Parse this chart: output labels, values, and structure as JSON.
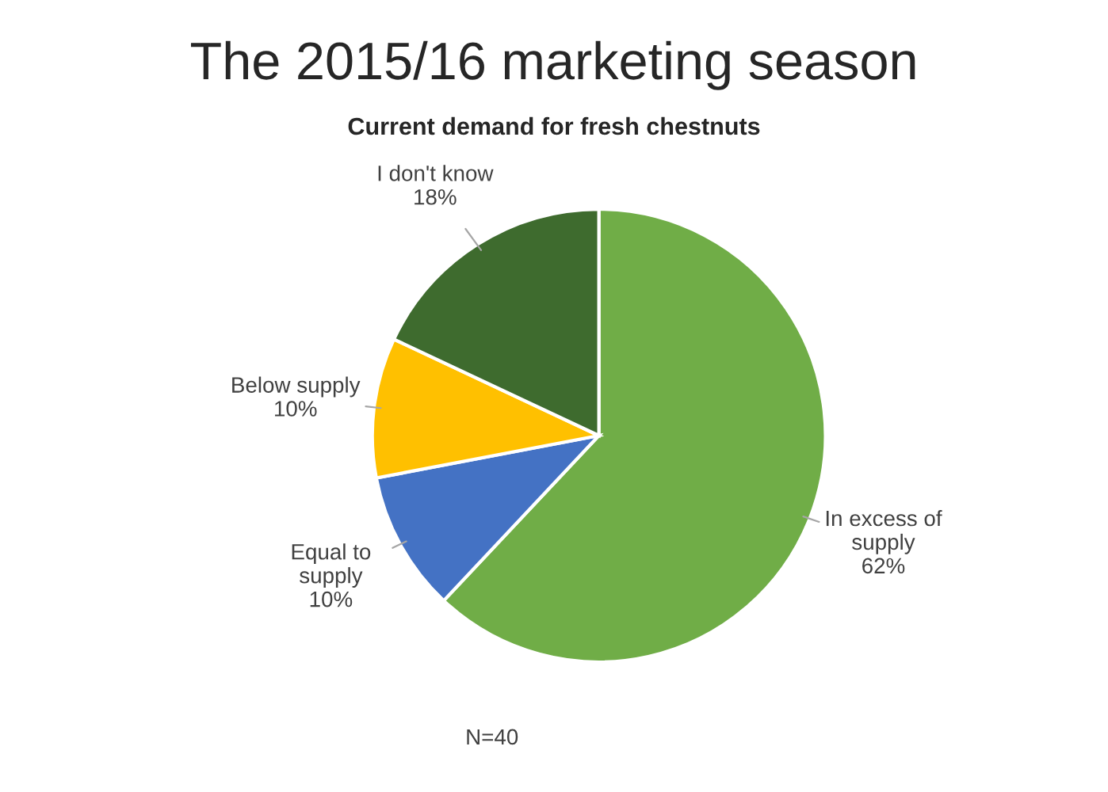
{
  "chart_data": {
    "type": "pie",
    "title": "The 2015/16 marketing season",
    "subtitle": "Current demand for fresh chestnuts",
    "categories": [
      "In excess of\nsupply",
      "Equal to\nsupply",
      "Below supply",
      "I don't know"
    ],
    "values": [
      62,
      10,
      10,
      18
    ],
    "value_labels": [
      "62%",
      "10%",
      "10%",
      "18%"
    ],
    "colors": [
      "#70ad47",
      "#4472c4",
      "#ffc000",
      "#3e6b2e"
    ],
    "annotations": [
      "N=40"
    ]
  }
}
